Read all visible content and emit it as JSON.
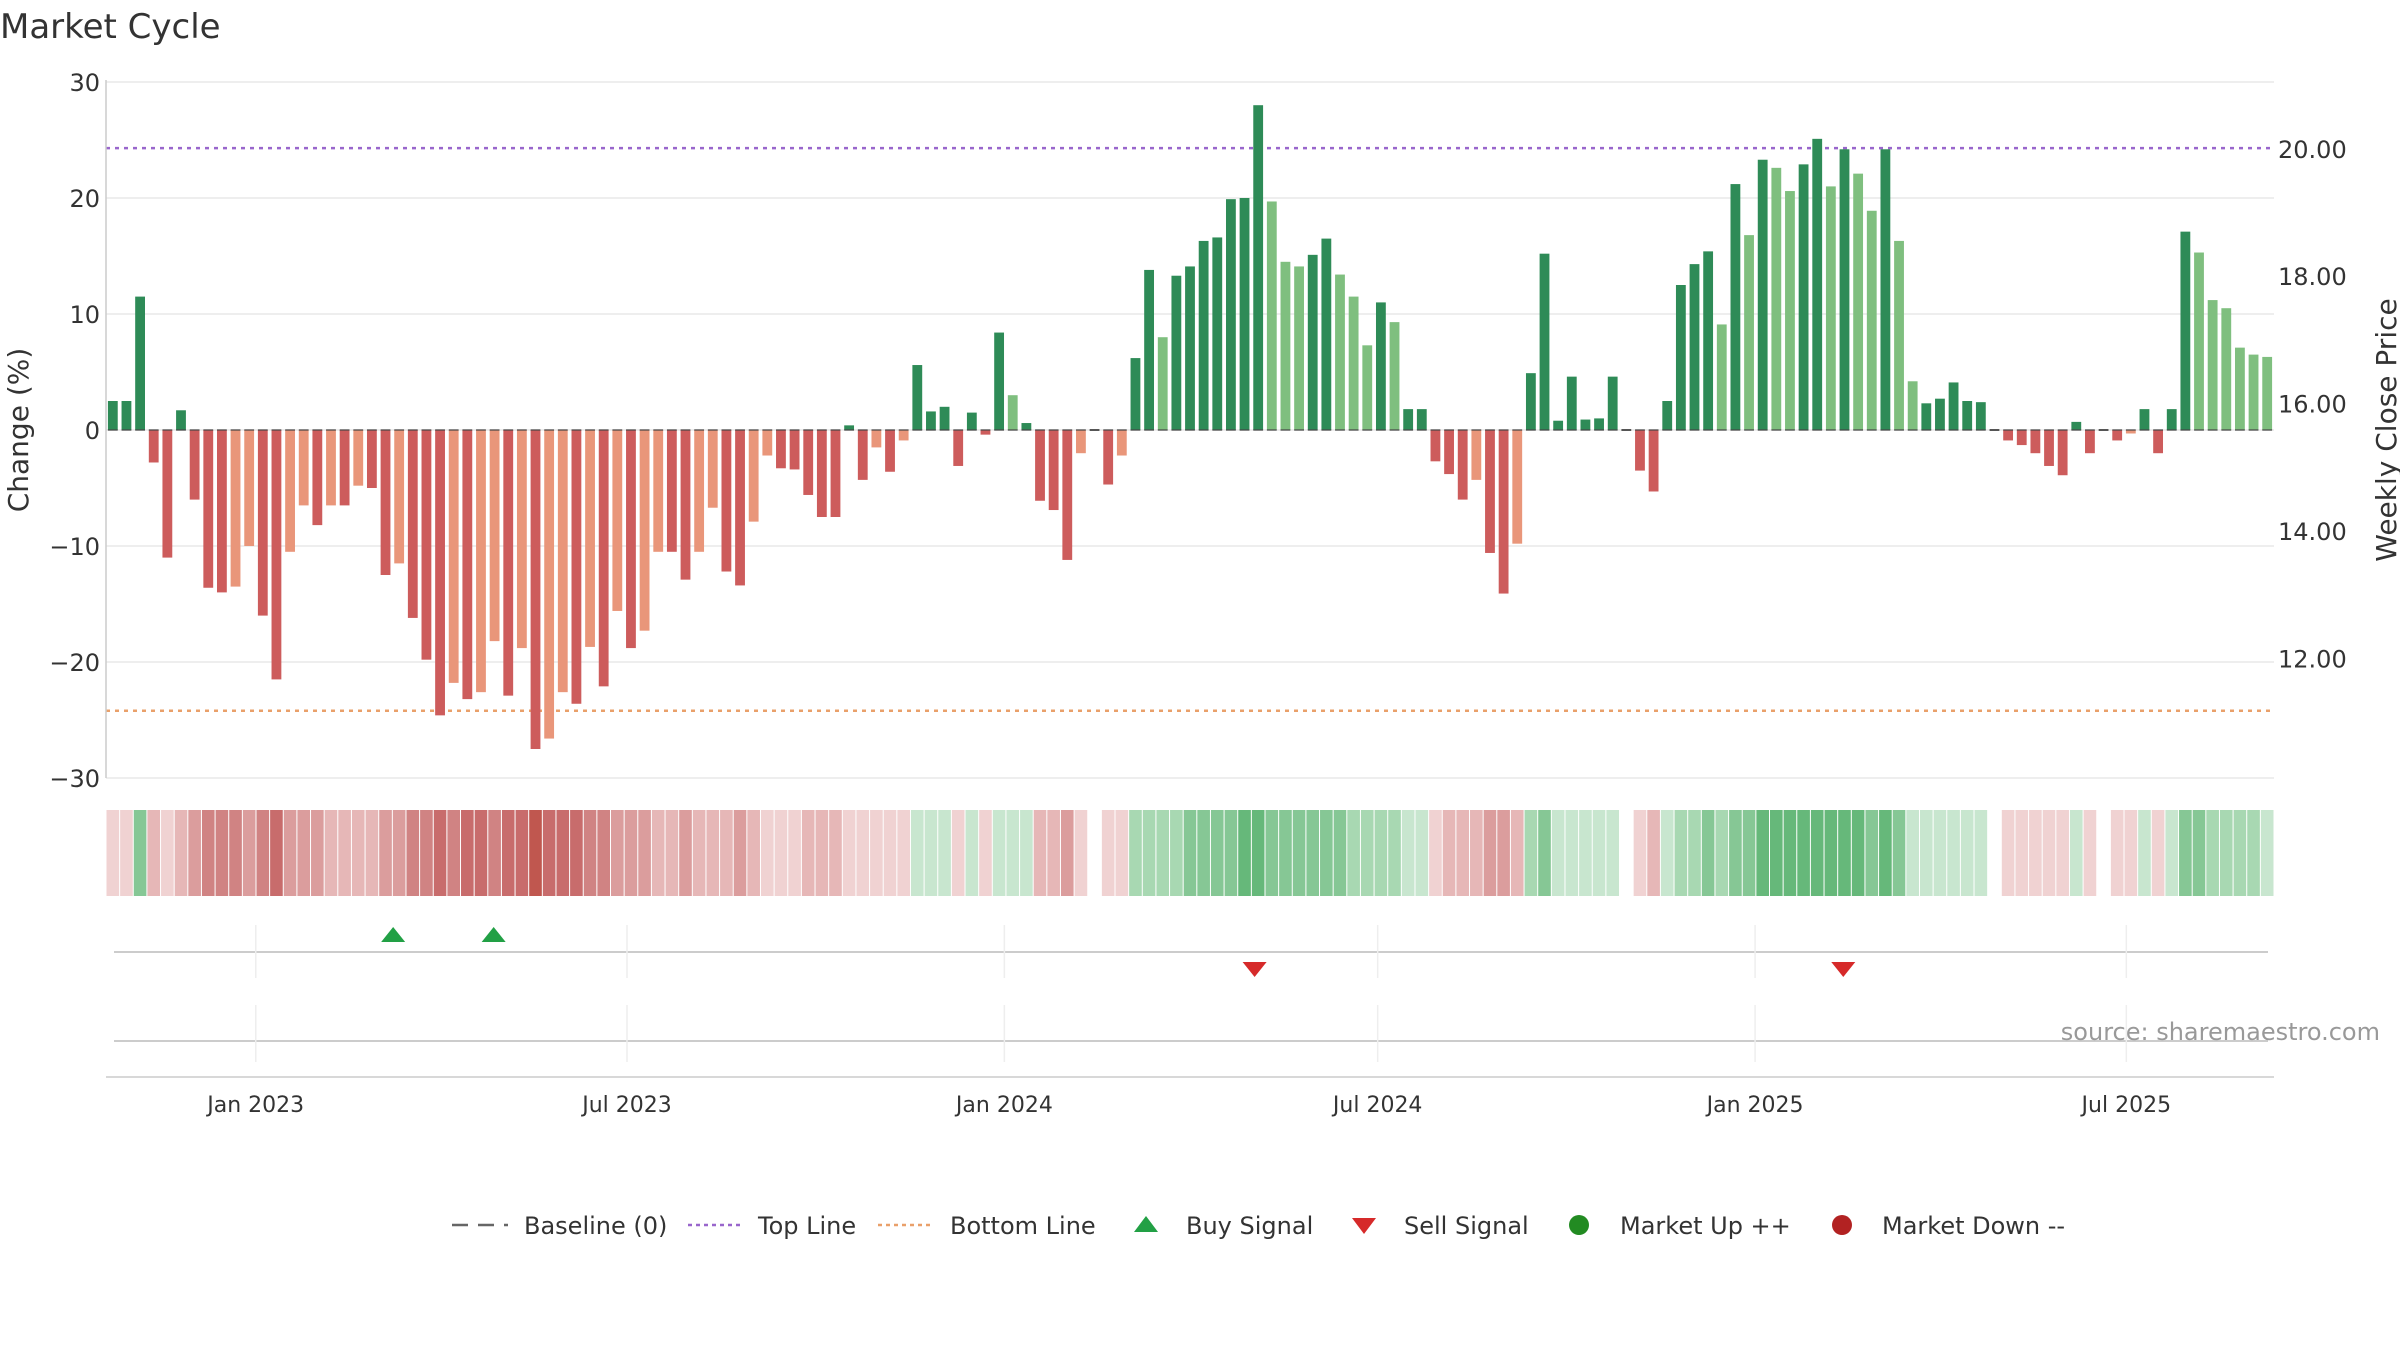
{
  "page": {
    "source": "source: sharemaestro.com"
  },
  "chart_data": {
    "type": "bar",
    "title": "Market Cycle",
    "ylabel": "Change (%)",
    "y2label": "Weekly Close Price",
    "ylim": [
      -30,
      30
    ],
    "y2lim": [
      10.12,
      21.05
    ],
    "yticks": [
      30,
      20,
      10,
      0,
      -10,
      -20,
      -30
    ],
    "y2ticks": [
      "20.00",
      "18.00",
      "16.00",
      "14.00",
      "12.00"
    ],
    "y2tick_values": [
      20,
      18,
      16,
      14,
      12
    ],
    "x_start": "2022-10-20",
    "x_end": "2025-09-11",
    "xticks": [
      {
        "label": "Jan 2023",
        "date": "2023-01-01"
      },
      {
        "label": "Jul 2023",
        "date": "2023-07-01"
      },
      {
        "label": "Jan 2024",
        "date": "2024-01-01"
      },
      {
        "label": "Jul 2024",
        "date": "2024-07-01"
      },
      {
        "label": "Jan 2025",
        "date": "2025-01-01"
      },
      {
        "label": "Jul 2025",
        "date": "2025-07-01"
      }
    ],
    "top_line": 24.3,
    "bottom_line": -24.2,
    "values": [
      2.5,
      2.5,
      11.5,
      -2.8,
      -11,
      1.7,
      -6,
      -13.6,
      -14,
      -13.5,
      -10,
      -16,
      -21.5,
      -10.5,
      -6.5,
      -8.2,
      -6.5,
      -6.5,
      -4.8,
      -5,
      -12.5,
      -11.5,
      -16.2,
      -19.8,
      -24.6,
      -21.8,
      -23.2,
      -22.6,
      -18.2,
      -22.9,
      -18.8,
      -27.5,
      -26.6,
      -22.6,
      -23.6,
      -18.7,
      -22.1,
      -15.6,
      -18.8,
      -17.3,
      -10.5,
      -10.5,
      -12.9,
      -10.5,
      -6.7,
      -12.2,
      -13.4,
      -7.9,
      -2.2,
      -3.3,
      -3.4,
      -5.6,
      -7.5,
      -7.5,
      0.4,
      -4.3,
      -1.5,
      -3.6,
      -0.9,
      5.6,
      1.6,
      2,
      -3.1,
      1.5,
      -0.4,
      8.4,
      3,
      0.6,
      -6.1,
      -6.9,
      -11.2,
      -2,
      0,
      -4.7,
      -2.2,
      6.2,
      13.8,
      8,
      13.3,
      14.1,
      16.3,
      16.6,
      19.9,
      20,
      28,
      19.7,
      14.5,
      14.1,
      15.1,
      16.5,
      13.4,
      11.5,
      7.3,
      11,
      9.3,
      1.8,
      1.8,
      -2.7,
      -3.8,
      -6,
      -4.3,
      -10.6,
      -14.1,
      -9.8,
      4.9,
      15.2,
      0.8,
      4.6,
      0.9,
      1,
      4.6,
      0,
      -3.5,
      -5.3,
      2.5,
      12.5,
      14.3,
      15.4,
      9.1,
      21.2,
      16.8,
      23.3,
      22.6,
      20.6,
      22.9,
      25.1,
      21,
      24.2,
      22.1,
      18.9,
      24.2,
      16.3,
      4.2,
      2.3,
      2.7,
      4.1,
      2.5,
      2.4,
      0,
      -0.9,
      -1.3,
      -2,
      -3.1,
      -3.9,
      0.7,
      -2,
      0,
      -0.9,
      -0.3,
      1.8,
      -2,
      1.8,
      17.1,
      15.3,
      11.2,
      10.5,
      7.1,
      6.5,
      6.3
    ],
    "heat_strip": [
      -1,
      -1,
      3,
      -2,
      -1,
      -2,
      -3,
      -4,
      -4,
      -4,
      -3,
      -4,
      -5,
      -3,
      -3,
      -3,
      -2,
      -2,
      -2,
      -2,
      -3,
      -3,
      -4,
      -4,
      -5,
      -4,
      -5,
      -5,
      -4,
      -5,
      -5,
      -6,
      -5,
      -5,
      -5,
      -4,
      -4,
      -3,
      -3,
      -3,
      -2,
      -2,
      -3,
      -2,
      -2,
      -2,
      -3,
      -2,
      -1,
      -1,
      -1,
      -2,
      -2,
      -2,
      -1,
      -1,
      -1,
      -1,
      -1,
      1,
      1,
      1,
      -1,
      1,
      -1,
      1,
      1,
      1,
      -2,
      -2,
      -3,
      -1,
      0,
      -1,
      -1,
      2,
      2,
      2,
      2,
      3,
      3,
      3,
      3,
      4,
      4,
      3,
      3,
      3,
      3,
      3,
      3,
      2,
      2,
      2,
      2,
      1,
      1,
      -1,
      -2,
      -2,
      -2,
      -3,
      -3,
      -2,
      2,
      3,
      1,
      1,
      1,
      1,
      1,
      0,
      -1,
      -2,
      1,
      2,
      2,
      3,
      2,
      3,
      3,
      4,
      4,
      4,
      4,
      4,
      4,
      4,
      4,
      3,
      4,
      3,
      1,
      1,
      1,
      1,
      1,
      1,
      0,
      -1,
      -1,
      -1,
      -1,
      -1,
      1,
      -1,
      0,
      -1,
      -1,
      1,
      -1,
      1,
      3,
      3,
      2,
      2,
      2,
      2,
      1
    ],
    "buy_signals": [
      "2023-03-09",
      "2023-04-27"
    ],
    "sell_signals": [
      "2024-05-02",
      "2025-02-13"
    ],
    "legend": [
      "Baseline (0)",
      "Top Line",
      "Bottom Line",
      "Buy Signal",
      "Sell Signal",
      "Market Up ++",
      "Market Down --"
    ],
    "colors": {
      "up_strong": "#2e8b57",
      "up_light": "#7fbf7f",
      "down_strong": "#cd5c5c",
      "down_light": "#e9967a",
      "top_line": "#9966cc",
      "bottom_line": "#e9a06a",
      "buy": "#22a045",
      "sell": "#d62a2a",
      "market_up": "#228b22",
      "market_down": "#b22222",
      "baseline": "#666666"
    }
  }
}
